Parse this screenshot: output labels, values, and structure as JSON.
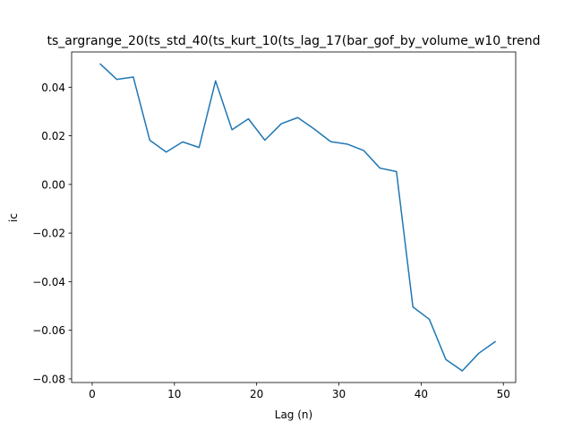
{
  "chart_data": {
    "type": "line",
    "title": "ts_argrange_20(ts_std_40(ts_kurt_10(ts_lag_17(bar_gof_by_volume_w10_trend",
    "xlabel": "Lag (n)",
    "ylabel": "ic",
    "xlim": [
      -2.5,
      51.5
    ],
    "ylim": [
      -0.0815,
      0.0545
    ],
    "x_ticks": [
      0,
      10,
      20,
      30,
      40,
      50
    ],
    "y_ticks": [
      -0.08,
      -0.06,
      -0.04,
      -0.02,
      0.0,
      0.02,
      0.04
    ],
    "x_tick_labels": [
      "0",
      "10",
      "20",
      "30",
      "40",
      "50"
    ],
    "y_tick_labels": [
      "−0.08",
      "−0.06",
      "−0.04",
      "−0.02",
      "0.00",
      "0.02",
      "0.04"
    ],
    "grid": false,
    "series": [
      {
        "color": "#1f77b4",
        "x": [
          1,
          3,
          5,
          7,
          9,
          11,
          13,
          15,
          17,
          19,
          21,
          23,
          25,
          27,
          29,
          31,
          33,
          35,
          37,
          39,
          41,
          43,
          45,
          47,
          49
        ],
        "y": [
          0.0495,
          0.0432,
          0.0442,
          0.0182,
          0.0133,
          0.0175,
          0.0152,
          0.0426,
          0.0225,
          0.027,
          0.0182,
          0.025,
          0.0275,
          0.0228,
          0.0176,
          0.0166,
          0.014,
          0.0067,
          0.0053,
          -0.0504,
          -0.0555,
          -0.072,
          -0.0767,
          -0.0695,
          -0.0647
        ]
      }
    ]
  }
}
